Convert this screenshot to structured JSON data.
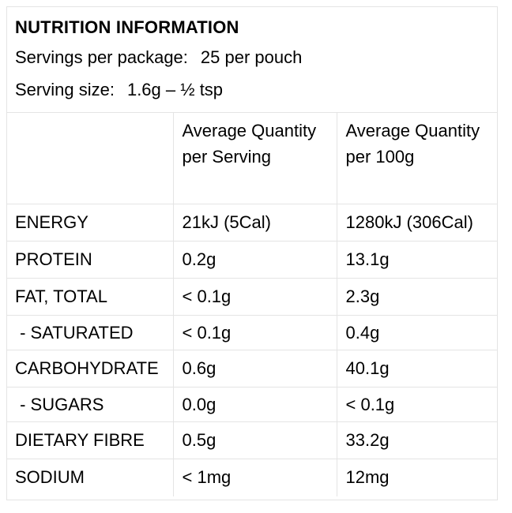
{
  "label": {
    "title": "NUTRITION INFORMATION",
    "servings_label": "Servings per package:",
    "servings_value": "25 per pouch",
    "size_label": "Serving size:",
    "size_value": "1.6g – ½ tsp"
  },
  "table": {
    "headers": [
      "",
      "Average Quantity per Serving",
      "Average Quantity per 100g"
    ],
    "rows": [
      {
        "name": "ENERGY",
        "per_serving": "21kJ (5Cal)",
        "per_100g": "1280kJ (306Cal)"
      },
      {
        "name": "PROTEIN",
        "per_serving": "0.2g",
        "per_100g": "13.1g"
      },
      {
        "name": "FAT, TOTAL",
        "per_serving": "< 0.1g",
        "per_100g": "2.3g"
      },
      {
        "name": " - SATURATED",
        "per_serving": "< 0.1g",
        "per_100g": "0.4g"
      },
      {
        "name": "CARBOHYDRATE",
        "per_serving": "0.6g",
        "per_100g": "40.1g"
      },
      {
        "name": " - SUGARS",
        "per_serving": "0.0g",
        "per_100g": "< 0.1g"
      },
      {
        "name": "DIETARY FIBRE",
        "per_serving": "0.5g",
        "per_100g": "33.2g"
      },
      {
        "name": "SODIUM",
        "per_serving": "< 1mg",
        "per_100g": "12mg"
      }
    ]
  }
}
